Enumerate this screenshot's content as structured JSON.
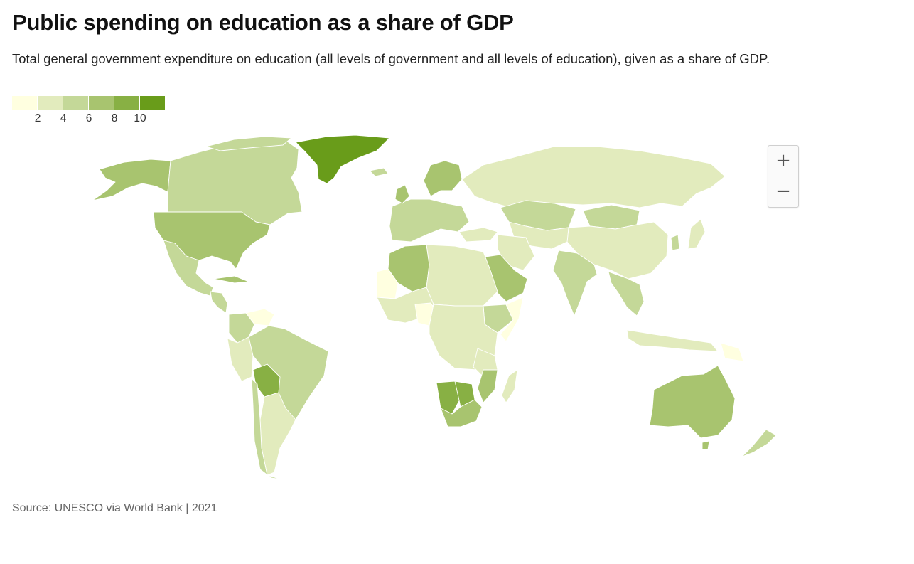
{
  "title": "Public spending on education as a share of GDP",
  "subtitle": "Total general government expenditure on education (all levels of government and all levels of education), given as a share of GDP.",
  "legend": {
    "colors": [
      "#ffffe0",
      "#e2ebbd",
      "#c4d898",
      "#a8c46f",
      "#88b044",
      "#699c1a"
    ],
    "labels": [
      "2",
      "4",
      "6",
      "8",
      "10"
    ]
  },
  "zoom": {
    "in_label": "+",
    "out_label": "−"
  },
  "source": "Source: UNESCO via World Bank | 2021",
  "palette": {
    "no_data": "#d6d6d6"
  }
}
